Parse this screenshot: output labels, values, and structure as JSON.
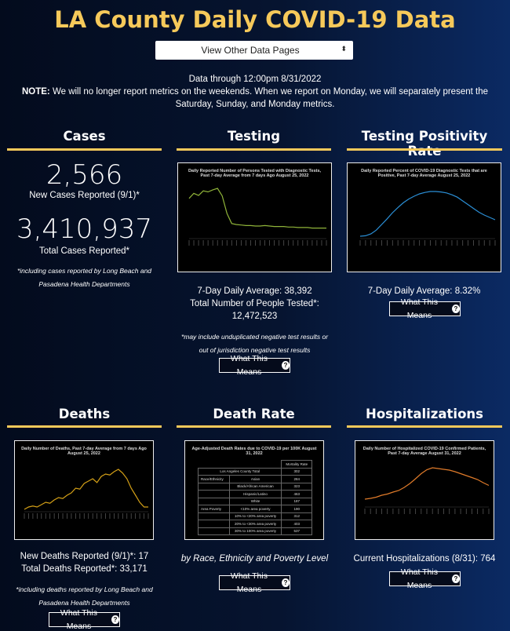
{
  "page": {
    "title": "LA County Daily COVID-19 Data"
  },
  "nav": {
    "select_label": "View Other Data Pages",
    "arrow": "⬍"
  },
  "notice": {
    "data_through": "Data through 12:00pm 8/31/2022",
    "note_label": "NOTE:",
    "note_text": " We will no longer report metrics on the weekends. When we report on Monday, we will separately present the Saturday, Sunday, and Monday metrics."
  },
  "cases": {
    "title": "Cases",
    "new_value": "2,566",
    "new_label": "New Cases Reported (9/1)*",
    "total_value": "3,410,937",
    "total_label": "Total Cases Reported*",
    "footnote": "*including cases reported by Long Beach and Pasadena Health Departments"
  },
  "testing": {
    "title": "Testing",
    "chart_title": "Daily Reported Number of Persons Tested with Diagnostic Tests, Past 7-day Average from 7 days Ago August 25, 2022",
    "avg": "7-Day Daily Average: 38,392",
    "total_label": "Total Number of People Tested*:",
    "total_value": "12,472,523",
    "footnote": "*may include unduplicated negative test results or out of jurisdiction negative test results",
    "button": "What This Means"
  },
  "positivity": {
    "title": "Testing Positivity Rate",
    "chart_title": "Daily Reported Percent of COVID-19 Diagnostic Tests that are Positive, Past 7-day Average August 25, 2022",
    "avg": "7-Day Daily Average: 8.32%",
    "button": "What This Means"
  },
  "deaths": {
    "title": "Deaths",
    "chart_title": "Daily Number of Deaths, Past 7-day Average from 7 days Ago August 25, 2022",
    "new": "New Deaths Reported (9/1)*: 17",
    "total": "Total Deaths Reported*: 33,171",
    "footnote": "*including deaths reported by Long Beach and Pasadena Health Departments",
    "button": "What This Means"
  },
  "death_rate": {
    "title": "Death Rate",
    "chart_title": "Age-Adjusted Death Rates due to COVID-19 per 100K August 31, 2022",
    "col_header": "Mortality Rate",
    "rows": [
      {
        "group": "Los Angeles County Total",
        "sub": "",
        "value": "302"
      },
      {
        "group": "Race/Ethnicity",
        "sub": "Asian",
        "value": "284"
      },
      {
        "group": "",
        "sub": "Black/African American",
        "value": "323"
      },
      {
        "group": "",
        "sub": "Hispanic/Latino",
        "value": "463"
      },
      {
        "group": "",
        "sub": "White",
        "value": "187"
      },
      {
        "group": "Area Poverty",
        "sub": "<10% area poverty",
        "value": "190"
      },
      {
        "group": "",
        "sub": "10% to <20% area poverty",
        "value": "312"
      },
      {
        "group": "",
        "sub": "20% to <30% area poverty",
        "value": "403"
      },
      {
        "group": "",
        "sub": "30% to 100% area poverty",
        "value": "537"
      }
    ],
    "caption": "by Race, Ethnicity and Poverty Level",
    "button": "What This Means"
  },
  "hosp": {
    "title": "Hospitalizations",
    "chart_title": "Daily Number of Hospitalized COVID-19 Confirmed Patients, Past 7-day Average August 31, 2022",
    "current": "Current Hospitalizations (8/31): 764",
    "button": "What This Means"
  },
  "icons": {
    "help": "?"
  },
  "colors": {
    "accent": "#f6c95a",
    "testing_line": "#8fb339",
    "positivity_line": "#2b8fd6",
    "deaths_line": "#d4a017",
    "hosp_line": "#e07b2a"
  },
  "chart_data": [
    {
      "type": "line",
      "title": "Daily Reported Number of Persons Tested with Diagnostic Tests, Past 7-day Average from 7 days Ago August 25, 2022",
      "series": [
        {
          "values": [
            0.8,
            0.9,
            0.86,
            0.95,
            0.93,
            0.97,
            1.0,
            0.85,
            0.5,
            0.3,
            0.28,
            0.27,
            0.26,
            0.26,
            0.25,
            0.25,
            0.26,
            0.25,
            0.24,
            0.24,
            0.24,
            0.23,
            0.23,
            0.22,
            0.22,
            0.22,
            0.21,
            0.21,
            0.21,
            0.21
          ]
        }
      ]
    },
    {
      "type": "line",
      "title": "Daily Reported Percent of COVID-19 Diagnostic Tests that are Positive, Past 7-day Average August 25, 2022",
      "series": [
        {
          "values": [
            0.05,
            0.06,
            0.1,
            0.18,
            0.3,
            0.42,
            0.55,
            0.66,
            0.76,
            0.84,
            0.9,
            0.95,
            0.98,
            1.0,
            1.0,
            0.99,
            0.97,
            0.93,
            0.88,
            0.8,
            0.72,
            0.64,
            0.56,
            0.5,
            0.45,
            0.4
          ]
        }
      ]
    },
    {
      "type": "line",
      "title": "Daily Number of Deaths, Past 7-day Average from 7 days Ago August 25, 2022",
      "series": [
        {
          "values": [
            0.05,
            0.1,
            0.12,
            0.1,
            0.15,
            0.2,
            0.18,
            0.25,
            0.3,
            0.28,
            0.35,
            0.4,
            0.5,
            0.48,
            0.6,
            0.65,
            0.7,
            0.62,
            0.75,
            0.8,
            0.78,
            0.85,
            0.9,
            0.82,
            0.7,
            0.5,
            0.35,
            0.2,
            0.1,
            0.1
          ]
        }
      ]
    },
    {
      "type": "line",
      "title": "Daily Number of Hospitalized COVID-19 Confirmed Patients, Past 7-day Average August 31, 2022",
      "series": [
        {
          "values": [
            0.2,
            0.22,
            0.25,
            0.3,
            0.33,
            0.38,
            0.42,
            0.5,
            0.6,
            0.72,
            0.85,
            0.95,
            1.0,
            0.98,
            0.96,
            0.94,
            0.9,
            0.85,
            0.8,
            0.75,
            0.7,
            0.62,
            0.55
          ]
        }
      ]
    }
  ]
}
